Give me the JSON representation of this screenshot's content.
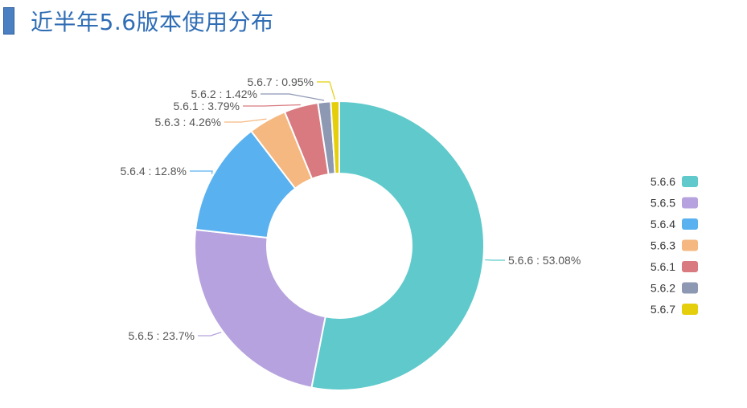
{
  "header": {
    "title": "近半年5.6版本使用分布"
  },
  "chart_data": {
    "type": "pie",
    "donut": true,
    "title": "近半年5.6版本使用分布",
    "legend_position": "right",
    "slices": [
      {
        "name": "5.6.6",
        "value": 53.08,
        "label": "5.6.6 : 53.08%",
        "color": "#5fc9cb"
      },
      {
        "name": "5.6.5",
        "value": 23.7,
        "label": "5.6.5 : 23.7%",
        "color": "#b6a2de"
      },
      {
        "name": "5.6.4",
        "value": 12.8,
        "label": "5.6.4 : 12.8%",
        "color": "#5ab1ef"
      },
      {
        "name": "5.6.3",
        "value": 4.26,
        "label": "5.6.3 : 4.26%",
        "color": "#f5b881"
      },
      {
        "name": "5.6.1",
        "value": 3.79,
        "label": "5.6.1 : 3.79%",
        "color": "#d87a80"
      },
      {
        "name": "5.6.2",
        "value": 1.42,
        "label": "5.6.2 : 1.42%",
        "color": "#8d98b3"
      },
      {
        "name": "5.6.7",
        "value": 0.95,
        "label": "5.6.7 : 0.95%",
        "color": "#e5cf0d"
      }
    ]
  }
}
